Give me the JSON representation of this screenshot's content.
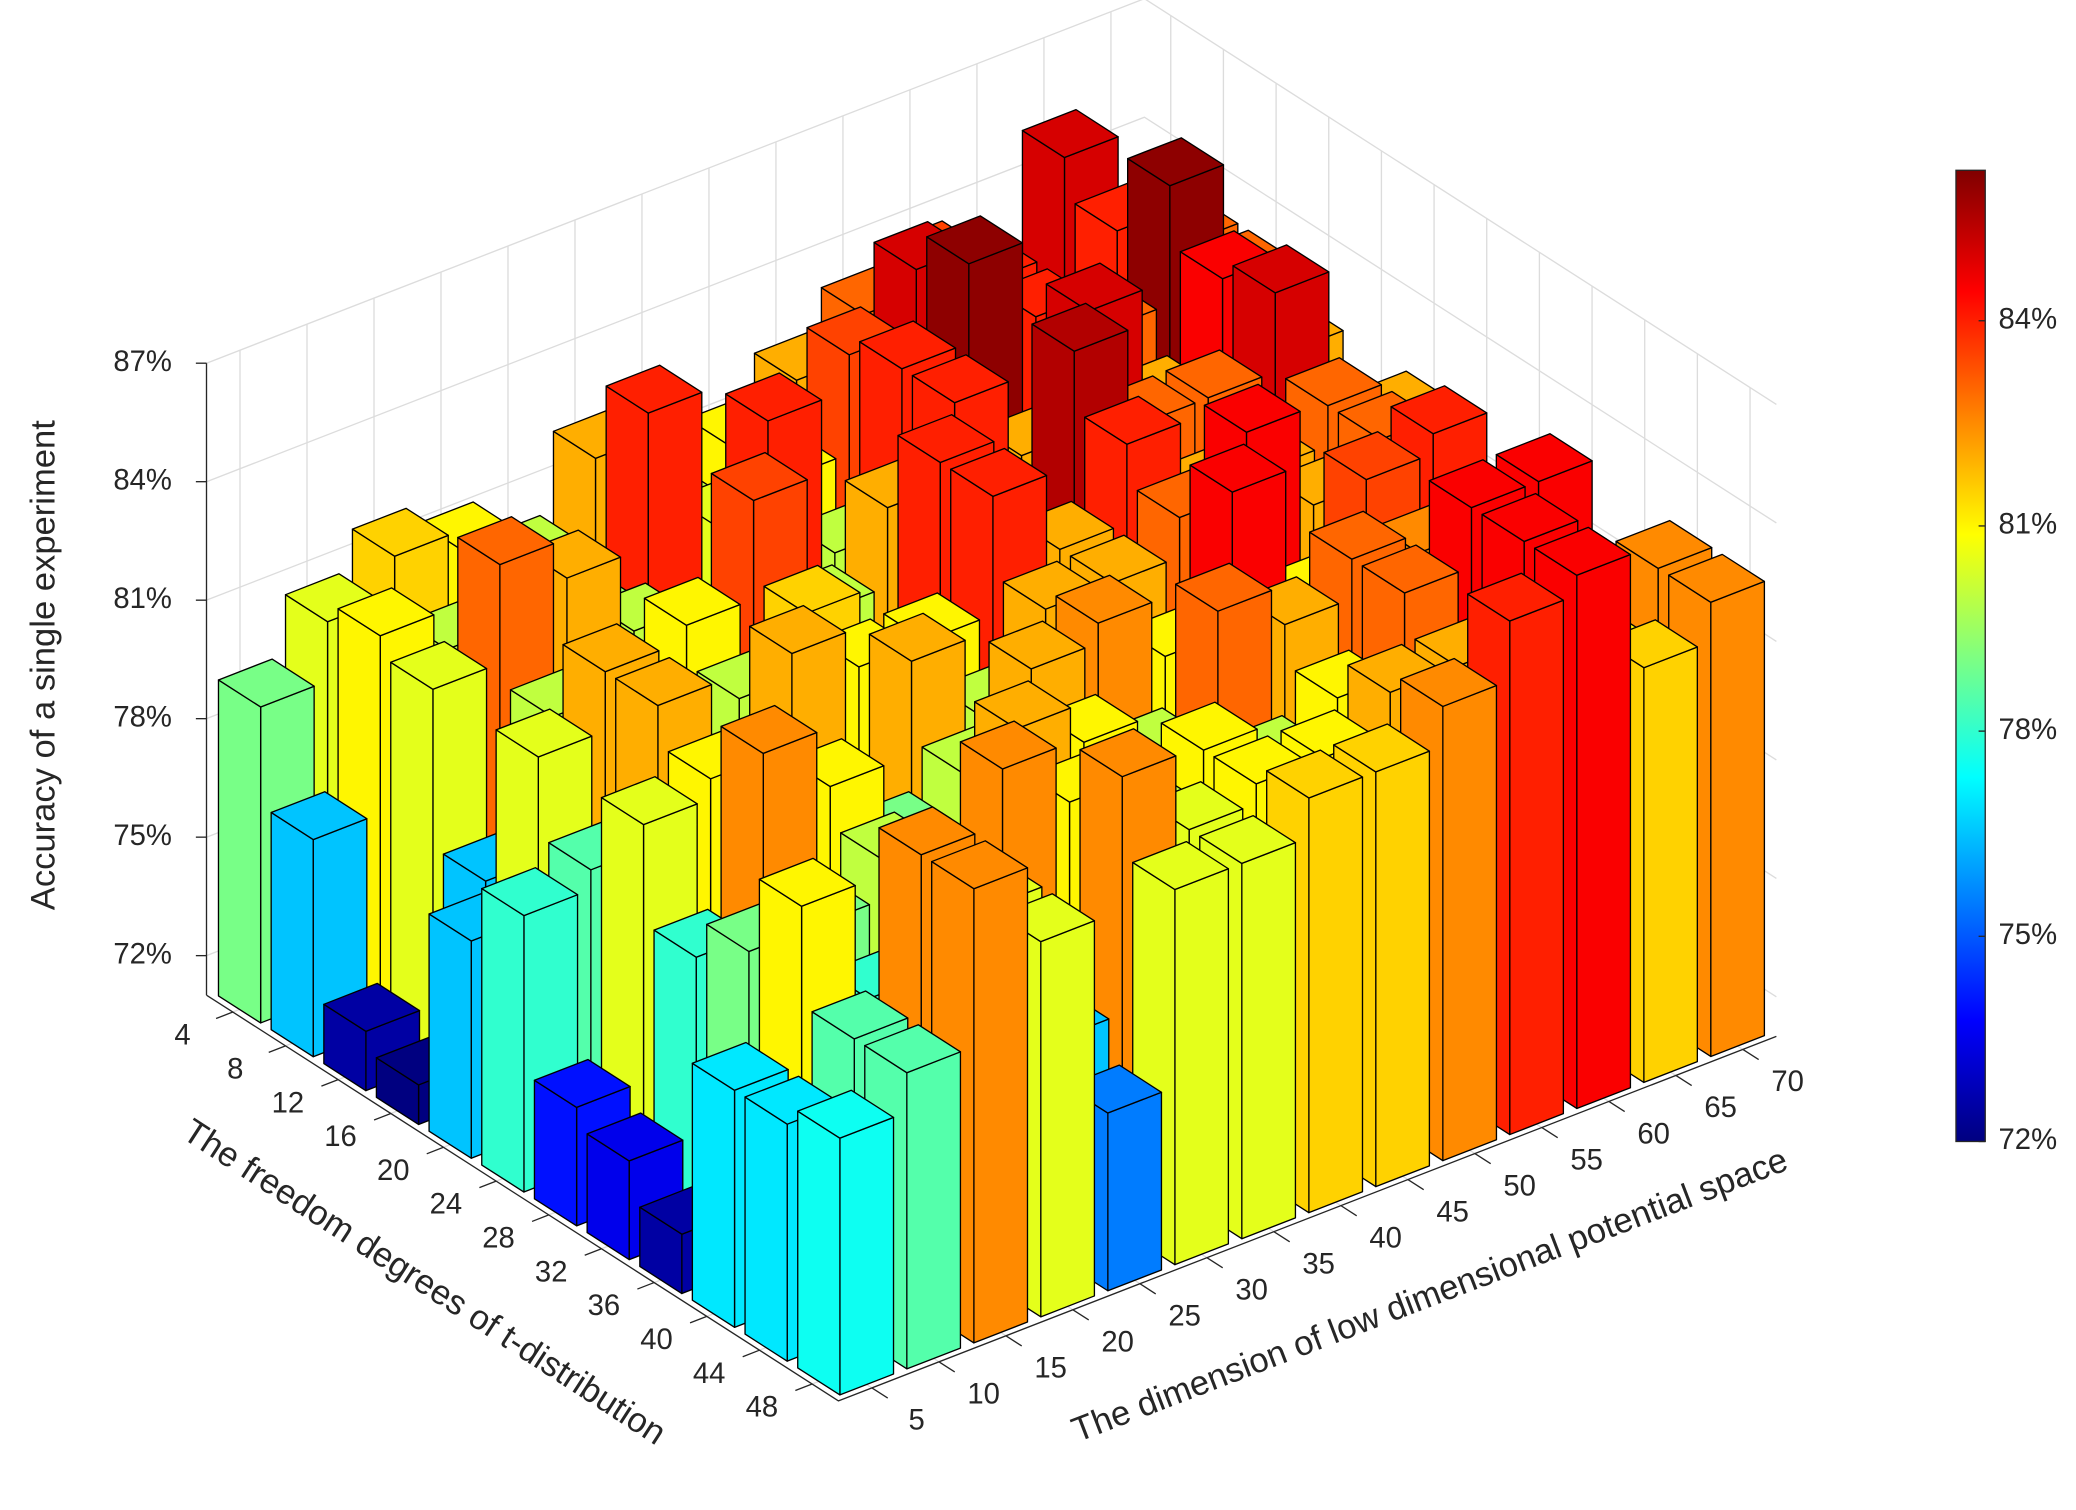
{
  "chart_data": {
    "type": "bar3d",
    "xlabel": "The freedom degrees of t-distribution",
    "ylabel": "The dimension of low dimensional potential space",
    "zlabel": "Accuracy of a single experiment",
    "x": [
      4,
      8,
      12,
      16,
      20,
      24,
      28,
      32,
      36,
      40,
      44,
      48
    ],
    "y": [
      5,
      10,
      15,
      20,
      25,
      30,
      35,
      40,
      45,
      50,
      55,
      60,
      65,
      70
    ],
    "values": [
      [
        79,
        80.5,
        81.5,
        81,
        80,
        82,
        80,
        81,
        82,
        83,
        83.5,
        80,
        85,
        82
      ],
      [
        76.5,
        81,
        80,
        80,
        79.5,
        84,
        80.5,
        81,
        83.5,
        85,
        84,
        82,
        84,
        83
      ],
      [
        72.5,
        80.5,
        83,
        82,
        80,
        79,
        84,
        80,
        84,
        86,
        84,
        83,
        86,
        83
      ],
      [
        72,
        76.5,
        80,
        78,
        81,
        83.5,
        80,
        82,
        84,
        82,
        85,
        82,
        84.5,
        82
      ],
      [
        76.5,
        80.5,
        82,
        79,
        80,
        81.5,
        78,
        84,
        81,
        85.5,
        83,
        83,
        85,
        81
      ],
      [
        78,
        78.5,
        82,
        78,
        82,
        81,
        81,
        84,
        82,
        84,
        82,
        82,
        83,
        82
      ],
      [
        74,
        80.5,
        81,
        80,
        78,
        82,
        80,
        82,
        82,
        83,
        84.5,
        82,
        83,
        80
      ],
      [
        73.5,
        78,
        82.5,
        81,
        79,
        80,
        82,
        82.5,
        81,
        84.5,
        81,
        83.5,
        84,
        81
      ],
      [
        72.5,
        79,
        79,
        80,
        78,
        82,
        81,
        80,
        83,
        82,
        83,
        82.5,
        81,
        81
      ],
      [
        77,
        81,
        78,
        78,
        82.5,
        81,
        80,
        81,
        80,
        81,
        83,
        84.5,
        84.5,
        80.5
      ],
      [
        77,
        78.5,
        82.5,
        80.5,
        76.5,
        82.5,
        80.5,
        81,
        81,
        82,
        82,
        84.5,
        81,
        82.5
      ],
      [
        77.5,
        78.5,
        82.5,
        80.5,
        75.5,
        80.5,
        80.5,
        81.5,
        81.5,
        82.5,
        84,
        84.5,
        81.5,
        82.5
      ]
    ],
    "zlim": [
      71,
      87
    ],
    "zticks": [
      {
        "value": 72,
        "label": "72%"
      },
      {
        "value": 75,
        "label": "75%"
      },
      {
        "value": 78,
        "label": "78%"
      },
      {
        "value": 81,
        "label": "81%"
      },
      {
        "value": 84,
        "label": "84%"
      },
      {
        "value": 87,
        "label": "87%"
      }
    ],
    "colormap": "jet",
    "clim": [
      72,
      86.2
    ],
    "cticks": [
      {
        "value": 72,
        "label": "72%"
      },
      {
        "value": 75,
        "label": "75%"
      },
      {
        "value": 78,
        "label": "78%"
      },
      {
        "value": 81,
        "label": "81%"
      },
      {
        "value": 84,
        "label": "84%"
      }
    ],
    "grid": true
  }
}
